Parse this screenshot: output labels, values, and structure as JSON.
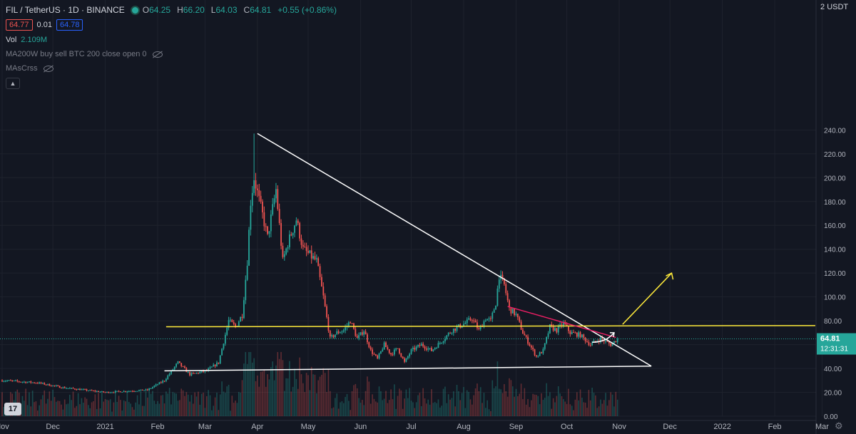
{
  "header": {
    "symbol": "FIL / TetherUS · 1D · BINANCE",
    "ohlc": [
      {
        "label": "O",
        "value": "64.25"
      },
      {
        "label": "H",
        "value": "66.20"
      },
      {
        "label": "L",
        "value": "64.03"
      },
      {
        "label": "C",
        "value": "64.81"
      }
    ],
    "change": "+0.55 (+0.86%)",
    "bid": "64.77",
    "spread": "0.01",
    "ask": "64.78"
  },
  "indicators": {
    "vol_label": "Vol",
    "vol_value": "2.109M",
    "ind1": "MA200W buy sell BTC 200 close open 0",
    "ind2": "MAsCrss"
  },
  "price_axis": {
    "currency": "USDT",
    "currency_selector": "2",
    "last_price": "64.81",
    "countdown": "12:31:31"
  },
  "chart_data": {
    "type": "candlestick",
    "title": "FIL / TetherUS · 1D · BINANCE",
    "y_ticks": [
      0,
      20,
      40,
      60,
      80,
      100,
      120,
      140,
      160,
      180,
      200,
      220,
      240
    ],
    "ylim": [
      0,
      250
    ],
    "x_ticks": [
      "Nov",
      "Dec",
      "2021",
      "Feb",
      "Mar",
      "Apr",
      "May",
      "Jun",
      "Jul",
      "Aug",
      "Sep",
      "Oct",
      "Nov",
      "Dec",
      "2022",
      "Feb",
      "Mar"
    ],
    "x_tick_days": [
      -16,
      14,
      45,
      76,
      104,
      135,
      165,
      196,
      226,
      257,
      288,
      318,
      349,
      379,
      410,
      441,
      469
    ],
    "last_price": 64.81,
    "price_anchors": [
      [
        -16,
        30
      ],
      [
        5,
        28
      ],
      [
        20,
        24
      ],
      [
        45,
        20
      ],
      [
        70,
        22
      ],
      [
        80,
        30
      ],
      [
        88,
        45
      ],
      [
        95,
        35
      ],
      [
        105,
        38
      ],
      [
        112,
        45
      ],
      [
        118,
        80
      ],
      [
        122,
        75
      ],
      [
        126,
        85
      ],
      [
        129,
        130
      ],
      [
        131,
        180
      ],
      [
        133,
        200
      ],
      [
        137,
        175
      ],
      [
        141,
        150
      ],
      [
        146,
        190
      ],
      [
        150,
        130
      ],
      [
        153,
        145
      ],
      [
        158,
        165
      ],
      [
        162,
        140
      ],
      [
        166,
        135
      ],
      [
        170,
        130
      ],
      [
        174,
        100
      ],
      [
        178,
        65
      ],
      [
        182,
        70
      ],
      [
        186,
        72
      ],
      [
        190,
        80
      ],
      [
        194,
        65
      ],
      [
        198,
        72
      ],
      [
        202,
        55
      ],
      [
        206,
        48
      ],
      [
        210,
        60
      ],
      [
        214,
        52
      ],
      [
        218,
        57
      ],
      [
        222,
        45
      ],
      [
        226,
        55
      ],
      [
        232,
        60
      ],
      [
        238,
        55
      ],
      [
        244,
        63
      ],
      [
        250,
        72
      ],
      [
        254,
        75
      ],
      [
        258,
        78
      ],
      [
        262,
        82
      ],
      [
        266,
        72
      ],
      [
        270,
        82
      ],
      [
        273,
        80
      ],
      [
        276,
        95
      ],
      [
        278,
        118
      ],
      [
        281,
        110
      ],
      [
        284,
        90
      ],
      [
        288,
        85
      ],
      [
        292,
        70
      ],
      [
        296,
        60
      ],
      [
        300,
        50
      ],
      [
        304,
        55
      ],
      [
        308,
        75
      ],
      [
        312,
        72
      ],
      [
        316,
        78
      ],
      [
        320,
        70
      ],
      [
        326,
        68
      ],
      [
        332,
        60
      ],
      [
        338,
        65
      ],
      [
        344,
        60
      ],
      [
        348,
        64.81
      ]
    ],
    "volume_ylim": [
      0,
      60
    ],
    "annotations": {
      "triangle_upper": [
        [
          135,
          237
        ],
        [
          368,
          42
        ]
      ],
      "triangle_lower": [
        [
          80,
          38
        ],
        [
          368,
          42
        ]
      ],
      "resistance": [
        [
          81,
          75
        ],
        [
          465,
          76
        ]
      ],
      "pink_trend": [
        [
          283,
          92
        ],
        [
          347,
          66
        ]
      ],
      "yellow_arrow": [
        [
          351,
          77
        ],
        [
          380,
          120
        ]
      ],
      "white_arrow": [
        [
          333,
          62
        ],
        [
          346,
          70
        ]
      ]
    },
    "colors": {
      "up": "#26a69a",
      "down": "#ef5350",
      "triangle": "#ffffff",
      "resistance": "#ffeb3b",
      "pink": "#e91e63",
      "arrow": "#ffeb3b"
    }
  }
}
